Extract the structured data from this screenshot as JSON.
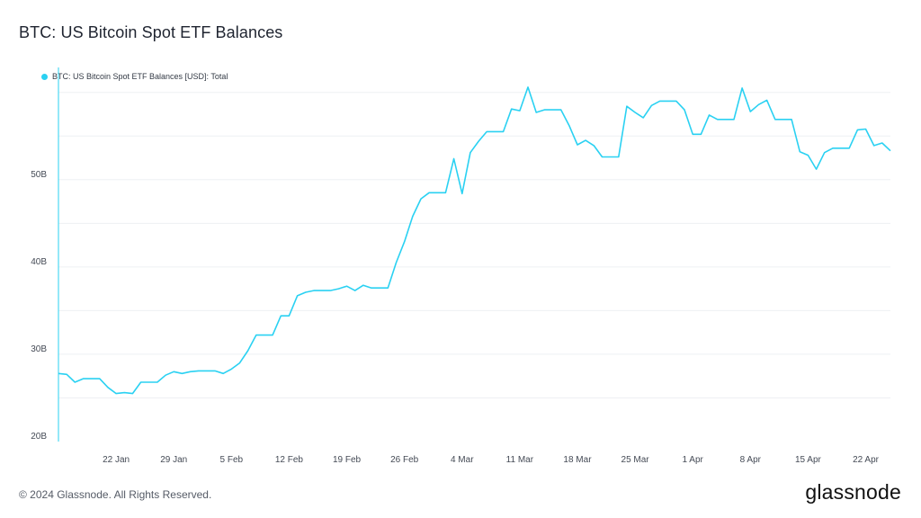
{
  "page": {
    "title": "BTC: US Bitcoin Spot ETF Balances",
    "copyright": "© 2024 Glassnode. All Rights Reserved.",
    "brand": "glassnode"
  },
  "chart_data": {
    "type": "line",
    "legend": {
      "label": "BTC: US Bitcoin Spot ETF Balances [USD]: Total",
      "position": "top-left"
    },
    "series": [
      {
        "name": "BTC: US Bitcoin Spot ETF Balances [USD]: Total",
        "color": "#2ad1f2",
        "x": [
          "2024-01-15",
          "2024-01-16",
          "2024-01-17",
          "2024-01-18",
          "2024-01-19",
          "2024-01-20",
          "2024-01-21",
          "2024-01-22",
          "2024-01-23",
          "2024-01-24",
          "2024-01-25",
          "2024-01-26",
          "2024-01-27",
          "2024-01-28",
          "2024-01-29",
          "2024-01-30",
          "2024-01-31",
          "2024-02-01",
          "2024-02-02",
          "2024-02-03",
          "2024-02-04",
          "2024-02-05",
          "2024-02-06",
          "2024-02-07",
          "2024-02-08",
          "2024-02-09",
          "2024-02-10",
          "2024-02-11",
          "2024-02-12",
          "2024-02-13",
          "2024-02-14",
          "2024-02-15",
          "2024-02-16",
          "2024-02-17",
          "2024-02-18",
          "2024-02-19",
          "2024-02-20",
          "2024-02-21",
          "2024-02-22",
          "2024-02-23",
          "2024-02-24",
          "2024-02-25",
          "2024-02-26",
          "2024-02-27",
          "2024-02-28",
          "2024-02-29",
          "2024-03-01",
          "2024-03-02",
          "2024-03-03",
          "2024-03-04",
          "2024-03-05",
          "2024-03-06",
          "2024-03-07",
          "2024-03-08",
          "2024-03-09",
          "2024-03-10",
          "2024-03-11",
          "2024-03-12",
          "2024-03-13",
          "2024-03-14",
          "2024-03-15",
          "2024-03-16",
          "2024-03-17",
          "2024-03-18",
          "2024-03-19",
          "2024-03-20",
          "2024-03-21",
          "2024-03-22",
          "2024-03-23",
          "2024-03-24",
          "2024-03-25",
          "2024-03-26",
          "2024-03-27",
          "2024-03-28",
          "2024-03-29",
          "2024-03-30",
          "2024-03-31",
          "2024-04-01",
          "2024-04-02",
          "2024-04-03",
          "2024-04-04",
          "2024-04-05",
          "2024-04-06",
          "2024-04-07",
          "2024-04-08",
          "2024-04-09",
          "2024-04-10",
          "2024-04-11",
          "2024-04-12",
          "2024-04-13",
          "2024-04-14",
          "2024-04-15",
          "2024-04-16",
          "2024-04-17",
          "2024-04-18",
          "2024-04-19",
          "2024-04-20",
          "2024-04-21",
          "2024-04-22",
          "2024-04-23",
          "2024-04-24",
          "2024-04-25"
        ],
        "values": [
          27.8,
          27.7,
          26.8,
          27.2,
          27.2,
          27.2,
          26.2,
          25.5,
          25.6,
          25.5,
          26.8,
          26.8,
          26.8,
          27.6,
          28.0,
          27.8,
          28.0,
          28.1,
          28.1,
          28.1,
          27.8,
          28.3,
          29.0,
          30.4,
          32.2,
          32.2,
          32.2,
          34.4,
          34.4,
          36.7,
          37.1,
          37.3,
          37.3,
          37.3,
          37.5,
          37.8,
          37.3,
          37.9,
          37.6,
          37.6,
          37.6,
          40.5,
          42.9,
          45.8,
          47.8,
          48.5,
          48.5,
          48.5,
          52.4,
          48.4,
          53.1,
          54.4,
          55.5,
          55.5,
          55.5,
          58.1,
          57.9,
          60.6,
          57.7,
          58.0,
          58.0,
          58.0,
          56.2,
          54.0,
          54.5,
          53.9,
          52.6,
          52.6,
          52.6,
          58.4,
          57.7,
          57.1,
          58.5,
          59.0,
          59.0,
          59.0,
          58.0,
          55.2,
          55.2,
          57.4,
          56.9,
          56.9,
          56.9,
          60.5,
          57.8,
          58.6,
          59.1,
          56.9,
          56.9,
          56.9,
          53.2,
          52.8,
          51.2,
          53.1,
          53.6,
          53.6,
          53.6,
          55.7,
          55.8,
          53.9,
          54.2,
          53.3
        ]
      }
    ],
    "x_ticks": [
      "22 Jan",
      "29 Jan",
      "5 Feb",
      "12 Feb",
      "19 Feb",
      "26 Feb",
      "4 Mar",
      "11 Mar",
      "18 Mar",
      "25 Mar",
      "1 Apr",
      "8 Apr",
      "15 Apr",
      "22 Apr"
    ],
    "x_tick_dates": [
      "2024-01-22",
      "2024-01-29",
      "2024-02-05",
      "2024-02-12",
      "2024-02-19",
      "2024-02-26",
      "2024-03-04",
      "2024-03-11",
      "2024-03-18",
      "2024-03-25",
      "2024-04-01",
      "2024-04-08",
      "2024-04-15",
      "2024-04-22"
    ],
    "x_range": [
      "2024-01-15",
      "2024-04-25"
    ],
    "y_ticks": [
      20,
      30,
      40,
      50
    ],
    "y_tick_labels": [
      "20B",
      "30B",
      "40B",
      "50B"
    ],
    "ylim": [
      20,
      61
    ],
    "y_unit": "B",
    "grid": true
  }
}
